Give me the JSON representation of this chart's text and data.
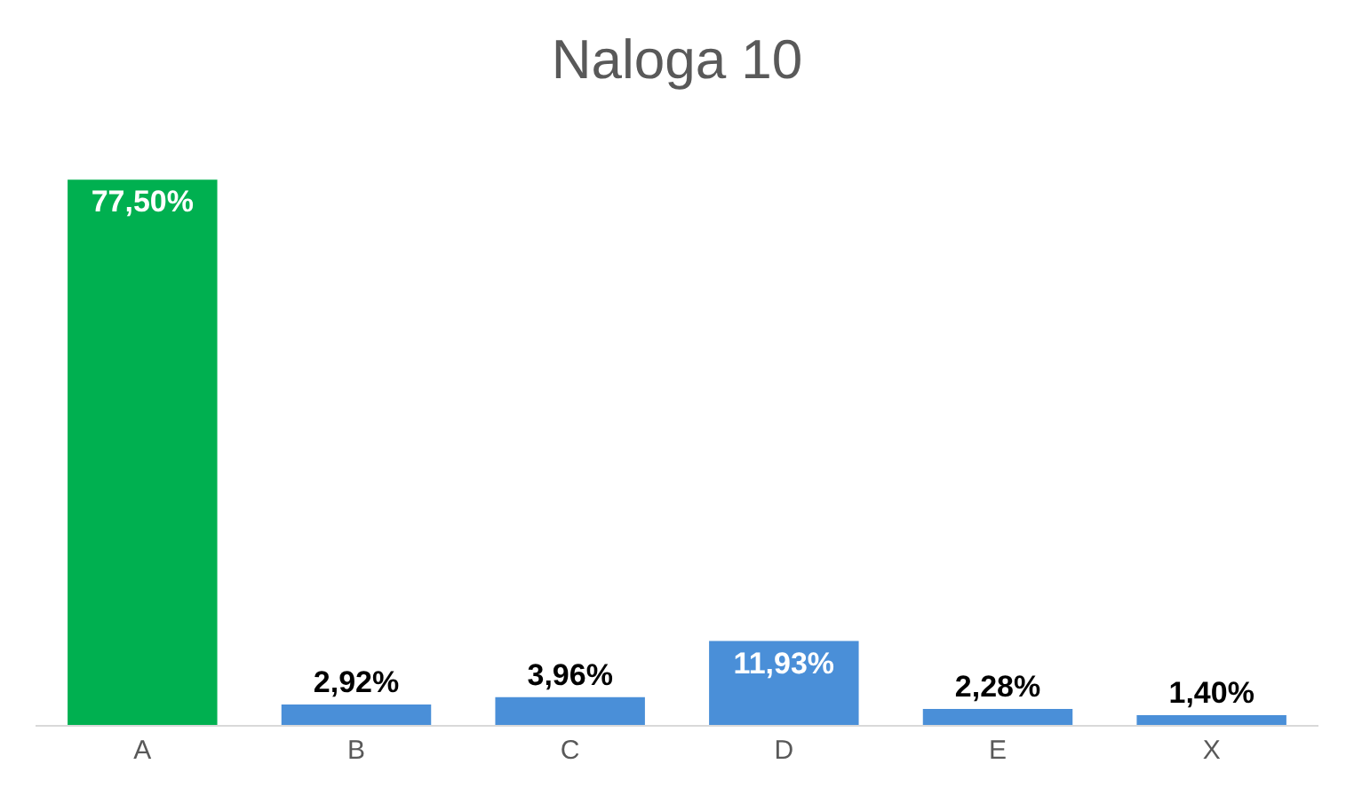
{
  "chart_data": {
    "type": "bar",
    "title": "Naloga 10",
    "categories": [
      "A",
      "B",
      "C",
      "D",
      "E",
      "X"
    ],
    "values": [
      77.5,
      2.92,
      3.96,
      11.93,
      2.28,
      1.4
    ],
    "value_labels": [
      "77,50%",
      "2,92%",
      "3,96%",
      "11,93%",
      "2,28%",
      "1,40%"
    ],
    "colors": [
      "#00b050",
      "#4a8fd8",
      "#4a8fd8",
      "#4a8fd8",
      "#4a8fd8",
      "#4a8fd8"
    ]
  }
}
